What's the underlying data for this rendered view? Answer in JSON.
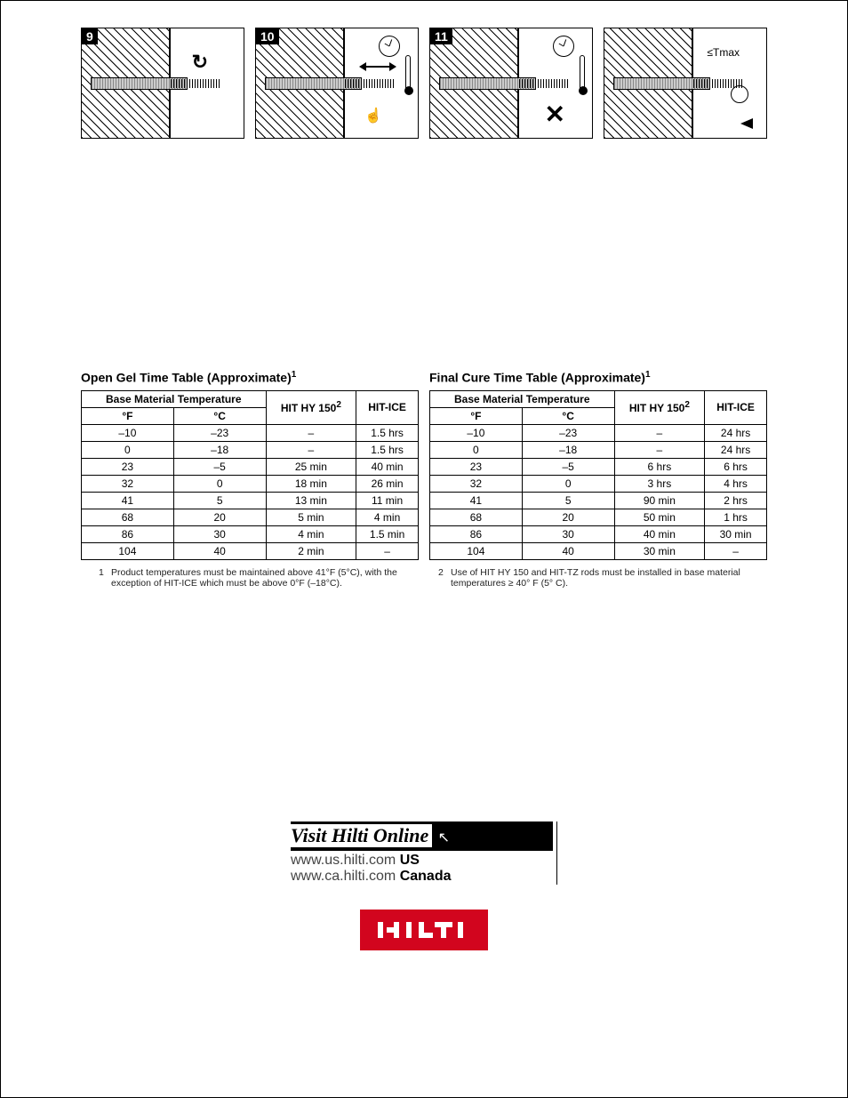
{
  "diagrams": {
    "steps": [
      "9",
      "10",
      "11"
    ],
    "tmax_label": "≤Tmax"
  },
  "table_left": {
    "title": "Open Gel Time Table (Approximate)",
    "title_sup": "1",
    "group_header": "Base Material Temperature",
    "columns": {
      "f": "°F",
      "c": "°C",
      "hy150": "HIT HY 150",
      "hy150_sup": "2",
      "ice": "HIT-ICE"
    },
    "rows": [
      {
        "f": "–10",
        "c": "–23",
        "hy150": "–",
        "ice": "1.5 hrs"
      },
      {
        "f": "0",
        "c": "–18",
        "hy150": "–",
        "ice": "1.5 hrs"
      },
      {
        "f": "23",
        "c": "–5",
        "hy150": "25 min",
        "ice": "40 min"
      },
      {
        "f": "32",
        "c": "0",
        "hy150": "18 min",
        "ice": "26 min"
      },
      {
        "f": "41",
        "c": "5",
        "hy150": "13 min",
        "ice": "11 min"
      },
      {
        "f": "68",
        "c": "20",
        "hy150": "5 min",
        "ice": "4 min"
      },
      {
        "f": "86",
        "c": "30",
        "hy150": "4 min",
        "ice": "1.5 min"
      },
      {
        "f": "104",
        "c": "40",
        "hy150": "2 min",
        "ice": "–"
      }
    ]
  },
  "table_right": {
    "title": "Final Cure Time Table (Approximate)",
    "title_sup": "1",
    "group_header": "Base Material Temperature",
    "columns": {
      "f": "°F",
      "c": "°C",
      "hy150": "HIT HY 150",
      "hy150_sup": "2",
      "ice": "HIT-ICE"
    },
    "rows": [
      {
        "f": "–10",
        "c": "–23",
        "hy150": "–",
        "ice": "24 hrs"
      },
      {
        "f": "0",
        "c": "–18",
        "hy150": "–",
        "ice": "24 hrs"
      },
      {
        "f": "23",
        "c": "–5",
        "hy150": "6 hrs",
        "ice": "6 hrs"
      },
      {
        "f": "32",
        "c": "0",
        "hy150": "3 hrs",
        "ice": "4 hrs"
      },
      {
        "f": "41",
        "c": "5",
        "hy150": "90 min",
        "ice": "2 hrs"
      },
      {
        "f": "68",
        "c": "20",
        "hy150": "50 min",
        "ice": "1 hrs"
      },
      {
        "f": "86",
        "c": "30",
        "hy150": "40 min",
        "ice": "30 min"
      },
      {
        "f": "104",
        "c": "40",
        "hy150": "30 min",
        "ice": "–"
      }
    ]
  },
  "footnotes": {
    "n1": {
      "num": "1",
      "text": "Product temperatures must be maintained above 41°F (5°C), with the exception of HIT-ICE which must be above 0°F (–18°C)."
    },
    "n2": {
      "num": "2",
      "text": "Use of HIT HY 150 and HIT-TZ rods must be installed in base material temperatures ≥ 40° F (5° C)."
    }
  },
  "branding": {
    "visit": "Visit Hilti Online",
    "url_us": "www.us.hilti.com",
    "country_us": "US",
    "url_ca": "www.ca.hilti.com",
    "country_ca": "Canada",
    "logo_color": "#d2051e"
  }
}
